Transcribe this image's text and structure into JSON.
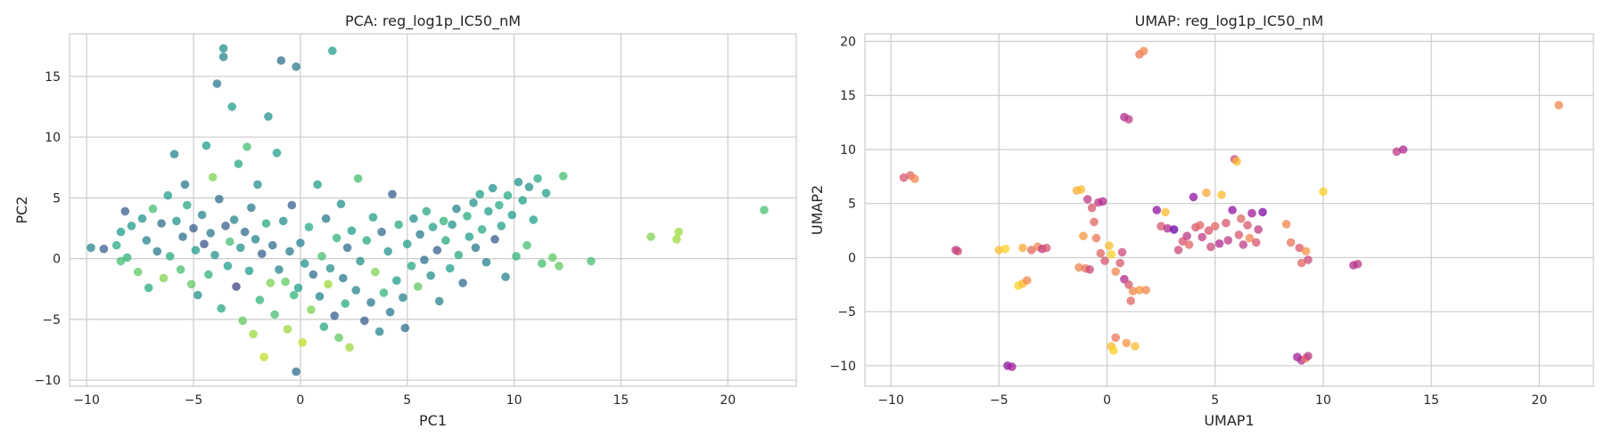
{
  "chart_data": [
    {
      "id": "pca",
      "type": "scatter",
      "title": "PCA: reg_log1p_IC50_nM",
      "xlabel": "PC1",
      "ylabel": "PC2",
      "xlim": [
        -10.8,
        23.2
      ],
      "ylim": [
        -10.5,
        18.5
      ],
      "xticks": [
        -10,
        -5,
        0,
        5,
        10,
        15,
        20
      ],
      "yticks": [
        -10,
        -5,
        0,
        5,
        10,
        15
      ],
      "grid": true,
      "colormap": "viridis",
      "marker_opacity": 0.75,
      "points": [
        [
          -9.8,
          0.9,
          0.45
        ],
        [
          -9.2,
          0.8,
          0.3
        ],
        [
          -8.6,
          1.1,
          0.6
        ],
        [
          -8.4,
          2.2,
          0.55
        ],
        [
          -8.2,
          3.9,
          0.3
        ],
        [
          -8.4,
          -0.2,
          0.7
        ],
        [
          -8.1,
          0.1,
          0.65
        ],
        [
          -7.9,
          2.7,
          0.55
        ],
        [
          -7.6,
          -1.1,
          0.75
        ],
        [
          -7.4,
          3.3,
          0.5
        ],
        [
          -7.2,
          1.5,
          0.45
        ],
        [
          -7.1,
          -2.4,
          0.6
        ],
        [
          -6.9,
          4.1,
          0.7
        ],
        [
          -6.7,
          0.6,
          0.4
        ],
        [
          -6.5,
          2.9,
          0.35
        ],
        [
          -6.4,
          -1.6,
          0.8
        ],
        [
          -6.2,
          5.2,
          0.55
        ],
        [
          -6.1,
          0.2,
          0.6
        ],
        [
          -5.9,
          8.6,
          0.45
        ],
        [
          -5.8,
          3.1,
          0.5
        ],
        [
          -5.6,
          -0.9,
          0.7
        ],
        [
          -5.5,
          1.8,
          0.35
        ],
        [
          -5.4,
          6.1,
          0.4
        ],
        [
          -5.3,
          4.4,
          0.6
        ],
        [
          -5.1,
          -2.1,
          0.75
        ],
        [
          -5.0,
          2.5,
          0.3
        ],
        [
          -4.9,
          0.7,
          0.55
        ],
        [
          -4.8,
          -3.0,
          0.5
        ],
        [
          -4.6,
          3.6,
          0.45
        ],
        [
          -4.5,
          1.2,
          0.25
        ],
        [
          -4.4,
          9.3,
          0.55
        ],
        [
          -4.3,
          -1.3,
          0.65
        ],
        [
          -4.2,
          2.1,
          0.4
        ],
        [
          -4.1,
          6.7,
          0.8
        ],
        [
          -4.0,
          0.3,
          0.5
        ],
        [
          -3.9,
          14.4,
          0.4
        ],
        [
          -3.8,
          4.9,
          0.35
        ],
        [
          -3.7,
          -4.1,
          0.6
        ],
        [
          -3.6,
          17.3,
          0.5
        ],
        [
          -3.6,
          16.6,
          0.45
        ],
        [
          -3.5,
          2.7,
          0.3
        ],
        [
          -3.4,
          -0.6,
          0.55
        ],
        [
          -3.3,
          1.4,
          0.7
        ],
        [
          -3.2,
          12.5,
          0.55
        ],
        [
          -3.1,
          3.2,
          0.45
        ],
        [
          -3.0,
          -2.3,
          0.2
        ],
        [
          -2.9,
          7.8,
          0.6
        ],
        [
          -2.8,
          0.9,
          0.5
        ],
        [
          -2.7,
          -5.1,
          0.75
        ],
        [
          -2.6,
          2.2,
          0.35
        ],
        [
          -2.5,
          9.2,
          0.7
        ],
        [
          -2.4,
          -1.0,
          0.55
        ],
        [
          -2.3,
          4.2,
          0.4
        ],
        [
          -2.2,
          -6.2,
          0.85
        ],
        [
          -2.1,
          1.6,
          0.45
        ],
        [
          -2.0,
          6.1,
          0.5
        ],
        [
          -1.9,
          -3.4,
          0.65
        ],
        [
          -1.8,
          0.4,
          0.3
        ],
        [
          -1.7,
          -8.1,
          0.9
        ],
        [
          -1.6,
          2.9,
          0.6
        ],
        [
          -1.5,
          11.7,
          0.5
        ],
        [
          -1.4,
          -2.0,
          0.8
        ],
        [
          -1.3,
          1.1,
          0.35
        ],
        [
          -1.2,
          -4.6,
          0.7
        ],
        [
          -1.1,
          8.7,
          0.55
        ],
        [
          -1.0,
          -0.9,
          0.45
        ],
        [
          -0.9,
          16.3,
          0.35
        ],
        [
          -0.8,
          3.1,
          0.5
        ],
        [
          -0.7,
          -1.9,
          0.75
        ],
        [
          -0.6,
          -5.8,
          0.85
        ],
        [
          -0.5,
          0.6,
          0.4
        ],
        [
          -0.4,
          4.4,
          0.3
        ],
        [
          -0.3,
          -3.0,
          0.65
        ],
        [
          -0.2,
          15.8,
          0.4
        ],
        [
          -0.2,
          -9.3,
          0.35
        ],
        [
          -0.1,
          -2.4,
          0.55
        ],
        [
          0.0,
          1.3,
          0.45
        ],
        [
          0.1,
          -6.9,
          0.9
        ],
        [
          0.2,
          -0.4,
          0.5
        ],
        [
          0.4,
          2.6,
          0.6
        ],
        [
          0.5,
          -4.2,
          0.8
        ],
        [
          0.6,
          -1.3,
          0.35
        ],
        [
          0.8,
          6.1,
          0.55
        ],
        [
          0.9,
          -3.1,
          0.45
        ],
        [
          1.0,
          0.2,
          0.7
        ],
        [
          1.1,
          -5.6,
          0.6
        ],
        [
          1.2,
          3.3,
          0.4
        ],
        [
          1.3,
          -2.1,
          0.85
        ],
        [
          1.4,
          -0.8,
          0.5
        ],
        [
          1.5,
          17.1,
          0.55
        ],
        [
          1.6,
          -4.7,
          0.3
        ],
        [
          1.7,
          1.7,
          0.65
        ],
        [
          1.8,
          -6.5,
          0.75
        ],
        [
          1.9,
          4.5,
          0.5
        ],
        [
          2.0,
          -1.6,
          0.4
        ],
        [
          2.1,
          -3.7,
          0.6
        ],
        [
          2.2,
          0.9,
          0.35
        ],
        [
          2.3,
          -7.3,
          0.85
        ],
        [
          2.4,
          2.3,
          0.55
        ],
        [
          2.6,
          -2.6,
          0.45
        ],
        [
          2.7,
          6.6,
          0.7
        ],
        [
          2.8,
          -0.2,
          0.5
        ],
        [
          3.0,
          -5.1,
          0.3
        ],
        [
          3.1,
          1.5,
          0.6
        ],
        [
          3.3,
          -3.6,
          0.4
        ],
        [
          3.4,
          3.4,
          0.55
        ],
        [
          3.5,
          -1.1,
          0.8
        ],
        [
          3.7,
          -6.0,
          0.45
        ],
        [
          3.8,
          2.2,
          0.35
        ],
        [
          3.9,
          -2.8,
          0.65
        ],
        [
          4.1,
          0.6,
          0.5
        ],
        [
          4.2,
          -4.4,
          0.4
        ],
        [
          4.3,
          5.3,
          0.3
        ],
        [
          4.5,
          -1.8,
          0.55
        ],
        [
          4.6,
          2.8,
          0.6
        ],
        [
          4.8,
          -3.2,
          0.45
        ],
        [
          4.9,
          -5.7,
          0.35
        ],
        [
          5.0,
          1.2,
          0.55
        ],
        [
          5.2,
          -0.6,
          0.6
        ],
        [
          5.3,
          3.3,
          0.5
        ],
        [
          5.5,
          -2.3,
          0.75
        ],
        [
          5.6,
          2.0,
          0.4
        ],
        [
          5.8,
          -0.1,
          0.35
        ],
        [
          5.9,
          3.9,
          0.6
        ],
        [
          6.1,
          -1.4,
          0.5
        ],
        [
          6.2,
          2.6,
          0.55
        ],
        [
          6.4,
          0.7,
          0.3
        ],
        [
          6.5,
          -3.5,
          0.45
        ],
        [
          6.7,
          3.1,
          0.65
        ],
        [
          6.8,
          1.5,
          0.6
        ],
        [
          7.0,
          -0.8,
          0.55
        ],
        [
          7.1,
          2.8,
          0.5
        ],
        [
          7.3,
          4.1,
          0.45
        ],
        [
          7.4,
          0.3,
          0.6
        ],
        [
          7.6,
          -2.0,
          0.35
        ],
        [
          7.8,
          3.5,
          0.6
        ],
        [
          7.9,
          1.8,
          0.55
        ],
        [
          8.1,
          4.6,
          0.5
        ],
        [
          8.2,
          0.9,
          0.4
        ],
        [
          8.4,
          5.3,
          0.55
        ],
        [
          8.5,
          2.4,
          0.6
        ],
        [
          8.7,
          -0.3,
          0.45
        ],
        [
          8.8,
          3.9,
          0.55
        ],
        [
          9.0,
          5.8,
          0.5
        ],
        [
          9.1,
          1.6,
          0.3
        ],
        [
          9.3,
          4.4,
          0.6
        ],
        [
          9.4,
          2.7,
          0.55
        ],
        [
          9.6,
          -1.5,
          0.45
        ],
        [
          9.7,
          5.2,
          0.6
        ],
        [
          9.9,
          3.6,
          0.55
        ],
        [
          10.1,
          0.2,
          0.65
        ],
        [
          10.2,
          6.3,
          0.5
        ],
        [
          10.4,
          4.8,
          0.55
        ],
        [
          10.6,
          1.1,
          0.7
        ],
        [
          10.7,
          5.9,
          0.5
        ],
        [
          10.9,
          3.2,
          0.55
        ],
        [
          11.1,
          6.6,
          0.6
        ],
        [
          11.3,
          -0.4,
          0.7
        ],
        [
          11.5,
          5.4,
          0.55
        ],
        [
          11.8,
          0.1,
          0.75
        ],
        [
          12.1,
          -0.6,
          0.75
        ],
        [
          12.3,
          6.8,
          0.7
        ],
        [
          13.6,
          -0.2,
          0.7
        ],
        [
          16.4,
          1.8,
          0.8
        ],
        [
          17.6,
          1.6,
          0.85
        ],
        [
          17.7,
          2.2,
          0.85
        ],
        [
          21.7,
          4.0,
          0.7
        ]
      ]
    },
    {
      "id": "umap",
      "type": "scatter",
      "title": "UMAP: reg_log1p_IC50_nM",
      "xlabel": "UMAP1",
      "ylabel": "UMAP2",
      "xlim": [
        -11.2,
        22.5
      ],
      "ylim": [
        -11.9,
        20.7
      ],
      "xticks": [
        -10,
        -5,
        0,
        5,
        10,
        15,
        20
      ],
      "yticks": [
        -10,
        -5,
        0,
        5,
        10,
        15,
        20
      ],
      "grid": true,
      "colormap": "plasma",
      "marker_opacity": 0.75,
      "points": [
        [
          -9.4,
          7.4,
          0.55
        ],
        [
          -9.1,
          7.6,
          0.6
        ],
        [
          -8.9,
          7.3,
          0.7
        ],
        [
          -7.0,
          0.7,
          0.45
        ],
        [
          -6.9,
          0.6,
          0.5
        ],
        [
          -5.0,
          0.7,
          0.85
        ],
        [
          -4.7,
          0.8,
          0.9
        ],
        [
          -4.6,
          -10.0,
          0.3
        ],
        [
          -4.4,
          -10.1,
          0.35
        ],
        [
          -4.1,
          -2.6,
          0.9
        ],
        [
          -3.9,
          -2.4,
          0.85
        ],
        [
          -3.7,
          -2.1,
          0.7
        ],
        [
          -3.9,
          0.9,
          0.8
        ],
        [
          -3.5,
          0.7,
          0.6
        ],
        [
          -3.2,
          1.0,
          0.7
        ],
        [
          -3.0,
          0.8,
          0.45
        ],
        [
          -2.8,
          0.9,
          0.55
        ],
        [
          -1.4,
          6.2,
          0.8
        ],
        [
          -1.2,
          6.3,
          0.85
        ],
        [
          -1.3,
          -0.9,
          0.7
        ],
        [
          -1.0,
          -1.0,
          0.65
        ],
        [
          -0.8,
          -1.1,
          0.5
        ],
        [
          -1.1,
          2.0,
          0.75
        ],
        [
          -0.9,
          5.4,
          0.45
        ],
        [
          -0.7,
          4.6,
          0.55
        ],
        [
          -0.6,
          3.3,
          0.6
        ],
        [
          -0.5,
          1.8,
          0.65
        ],
        [
          -0.4,
          5.1,
          0.45
        ],
        [
          -0.2,
          5.2,
          0.4
        ],
        [
          -0.3,
          0.4,
          0.6
        ],
        [
          -0.1,
          -0.3,
          0.55
        ],
        [
          0.1,
          1.1,
          0.85
        ],
        [
          0.2,
          0.3,
          0.9
        ],
        [
          0.4,
          -1.3,
          0.7
        ],
        [
          0.6,
          -0.5,
          0.55
        ],
        [
          0.7,
          0.5,
          0.5
        ],
        [
          0.8,
          -2.0,
          0.4
        ],
        [
          1.0,
          -2.5,
          0.55
        ],
        [
          1.2,
          -3.1,
          0.7
        ],
        [
          1.1,
          -4.0,
          0.6
        ],
        [
          1.5,
          -3.0,
          0.75
        ],
        [
          1.8,
          -3.0,
          0.7
        ],
        [
          0.8,
          13.0,
          0.4
        ],
        [
          1.0,
          12.8,
          0.45
        ],
        [
          0.2,
          -8.2,
          0.85
        ],
        [
          0.3,
          -8.6,
          0.9
        ],
        [
          0.4,
          -7.4,
          0.65
        ],
        [
          0.9,
          -7.9,
          0.75
        ],
        [
          1.3,
          -8.2,
          0.85
        ],
        [
          1.5,
          18.8,
          0.65
        ],
        [
          1.7,
          19.1,
          0.7
        ],
        [
          2.3,
          4.4,
          0.3
        ],
        [
          2.5,
          2.9,
          0.55
        ],
        [
          2.7,
          4.2,
          0.85
        ],
        [
          2.8,
          2.7,
          0.4
        ],
        [
          3.1,
          2.6,
          0.2
        ],
        [
          3.3,
          0.7,
          0.5
        ],
        [
          3.5,
          1.5,
          0.55
        ],
        [
          3.7,
          2.0,
          0.45
        ],
        [
          3.8,
          1.2,
          0.6
        ],
        [
          4.0,
          5.6,
          0.3
        ],
        [
          4.1,
          2.8,
          0.55
        ],
        [
          4.3,
          3.0,
          0.6
        ],
        [
          4.4,
          1.9,
          0.45
        ],
        [
          4.6,
          6.0,
          0.8
        ],
        [
          4.7,
          2.5,
          0.55
        ],
        [
          4.8,
          1.0,
          0.5
        ],
        [
          5.0,
          2.9,
          0.6
        ],
        [
          5.2,
          1.3,
          0.4
        ],
        [
          5.3,
          5.8,
          0.85
        ],
        [
          5.5,
          3.2,
          0.55
        ],
        [
          5.6,
          1.6,
          0.45
        ],
        [
          5.8,
          4.4,
          0.3
        ],
        [
          5.9,
          9.1,
          0.5
        ],
        [
          6.0,
          8.9,
          0.85
        ],
        [
          6.1,
          2.1,
          0.55
        ],
        [
          6.2,
          3.6,
          0.6
        ],
        [
          6.3,
          1.2,
          0.45
        ],
        [
          6.5,
          3.0,
          0.55
        ],
        [
          6.6,
          1.8,
          0.7
        ],
        [
          6.7,
          4.1,
          0.35
        ],
        [
          6.9,
          1.4,
          0.55
        ],
        [
          7.0,
          2.6,
          0.45
        ],
        [
          7.2,
          4.2,
          0.25
        ],
        [
          8.3,
          3.1,
          0.7
        ],
        [
          8.5,
          1.4,
          0.65
        ],
        [
          8.9,
          0.9,
          0.55
        ],
        [
          9.0,
          -0.5,
          0.6
        ],
        [
          9.2,
          0.6,
          0.75
        ],
        [
          9.3,
          -0.2,
          0.5
        ],
        [
          8.8,
          -9.2,
          0.35
        ],
        [
          9.0,
          -9.5,
          0.4
        ],
        [
          9.2,
          -9.3,
          0.65
        ],
        [
          9.3,
          -9.1,
          0.45
        ],
        [
          10.0,
          6.1,
          0.9
        ],
        [
          11.4,
          -0.7,
          0.4
        ],
        [
          11.6,
          -0.6,
          0.45
        ],
        [
          13.4,
          9.8,
          0.45
        ],
        [
          13.7,
          10.0,
          0.4
        ],
        [
          20.9,
          14.1,
          0.7
        ]
      ]
    }
  ]
}
